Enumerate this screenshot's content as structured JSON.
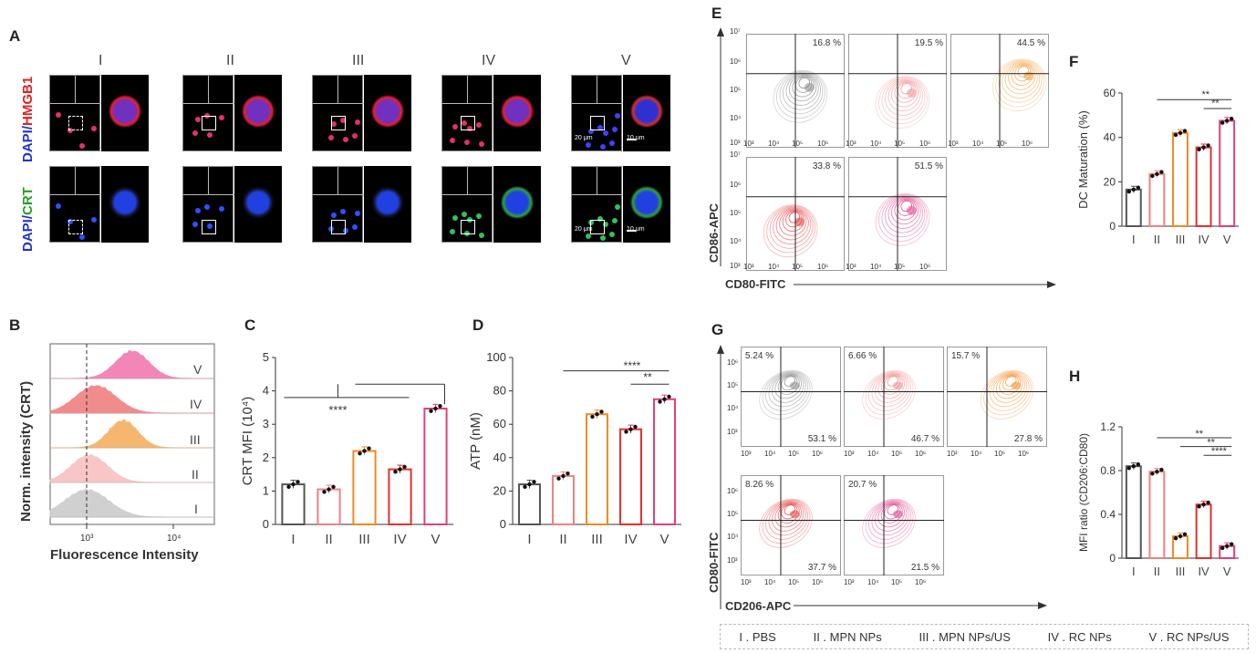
{
  "panels": {
    "A": "A",
    "B": "B",
    "C": "C",
    "D": "D",
    "E": "E",
    "F": "F",
    "G": "G",
    "H": "H"
  },
  "panelA": {
    "groups": [
      "I",
      "II",
      "III",
      "IV",
      "V"
    ],
    "row1_label_a": "DAPI/",
    "row1_label_b": "HMGB1",
    "row2_label_a": "DAPI/",
    "row2_label_b": "CRT",
    "scale_small": "20 μm",
    "scale_large": "10 μm"
  },
  "panelB": {
    "ylabel": "Norm. intensity (CRT)",
    "xlabel": "Fluorescence Intensity",
    "ticks": [
      "10³",
      "10⁴"
    ],
    "groups": [
      "V",
      "IV",
      "III",
      "II",
      "I"
    ]
  },
  "panelE": {
    "ylabel": "CD86-APC",
    "xlabel": "CD80-FITC",
    "percents": [
      "16.8 %",
      "19.5 %",
      "44.5 %",
      "33.8 %",
      "51.5 %"
    ],
    "yticks": [
      "10⁷",
      "10⁶",
      "10⁵",
      "10⁴",
      "10³"
    ],
    "xticks": [
      "10³",
      "10⁴",
      "10⁵",
      "10⁶"
    ]
  },
  "panelG": {
    "ylabel": "CD80-FITC",
    "xlabel": "CD206-APC",
    "upper": [
      "5.24 %",
      "6.66 %",
      "15.7 %",
      "8.26 %",
      "20.7 %"
    ],
    "lower": [
      "53.1 %",
      "46.7 %",
      "27.8 %",
      "37.7 %",
      "21.5 %"
    ],
    "yticks": [
      "10⁶",
      "10⁵",
      "10⁴",
      "10³"
    ],
    "xticks": [
      "10³",
      "10⁴",
      "10⁵",
      "10⁶"
    ]
  },
  "legend": [
    "I . PBS",
    "II . MPN NPs",
    "III . MPN NPs/US",
    "IV . RC NPs",
    "V . RC NPs/US"
  ],
  "colors": {
    "I": "#555555",
    "II": "#f08080",
    "III": "#f08a24",
    "IV": "#e03030",
    "V": "#e0407a"
  },
  "chart_data": [
    {
      "type": "bar",
      "panel": "C",
      "categories": [
        "I",
        "II",
        "III",
        "IV",
        "V"
      ],
      "values": [
        1.2,
        1.05,
        2.2,
        1.65,
        3.47
      ],
      "ylabel": "CRT MFI (10⁴)",
      "ylim": [
        0,
        5
      ],
      "yticks": [
        "0",
        "1",
        "2",
        "3",
        "4",
        "5"
      ],
      "significance": [
        "****"
      ]
    },
    {
      "type": "bar",
      "panel": "D",
      "categories": [
        "I",
        "II",
        "III",
        "IV",
        "V"
      ],
      "values": [
        24,
        29,
        66,
        57,
        75
      ],
      "ylabel": "ATP (nM)",
      "ylim": [
        0,
        100
      ],
      "yticks": [
        "0",
        "20",
        "40",
        "60",
        "80",
        "100"
      ],
      "significance": [
        "****",
        "**"
      ]
    },
    {
      "type": "bar",
      "panel": "F",
      "categories": [
        "I",
        "II",
        "III",
        "IV",
        "V"
      ],
      "values": [
        16.5,
        23.5,
        42,
        35.5,
        47.5
      ],
      "ylabel": "DC Maturation (%)",
      "ylim": [
        0,
        60
      ],
      "yticks": [
        "0",
        "20",
        "40",
        "60"
      ],
      "significance": [
        "**",
        "**"
      ]
    },
    {
      "type": "bar",
      "panel": "H",
      "categories": [
        "I",
        "II",
        "III",
        "IV",
        "V"
      ],
      "values": [
        0.84,
        0.79,
        0.2,
        0.49,
        0.11
      ],
      "ylabel": "MFI ratio (CD206:CD80)",
      "ylim": [
        0,
        1.2
      ],
      "yticks": [
        "0",
        "0.4",
        "0.8",
        "1.2"
      ],
      "significance": [
        "**",
        "**",
        "****"
      ]
    }
  ]
}
